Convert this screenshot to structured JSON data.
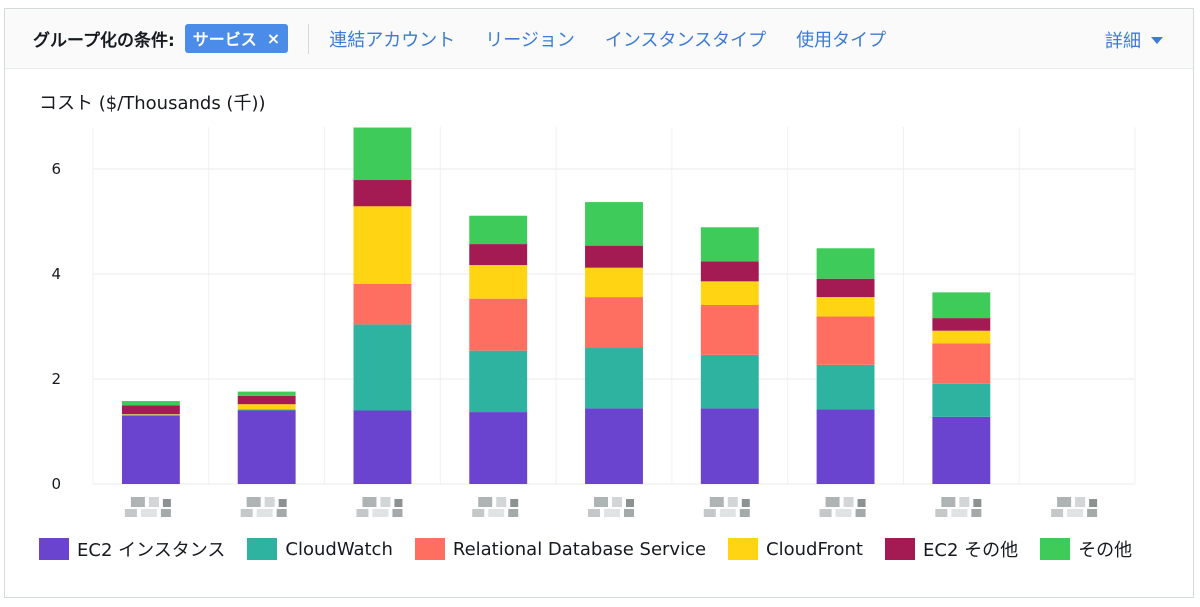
{
  "toolbar": {
    "group_label": "グループ化の条件:",
    "chip_label": "サービス",
    "chip_close": "×",
    "options": [
      "連結アカウント",
      "リージョン",
      "インスタンスタイプ",
      "使用タイプ"
    ],
    "detail_label": "詳細"
  },
  "chart_data": {
    "type": "bar",
    "stacked": true,
    "title": "",
    "ylabel": "コスト ($/Thousands (千))",
    "xlabel": "",
    "ylim": [
      0,
      6.8
    ],
    "yticks": [
      0,
      2,
      4,
      6
    ],
    "grid": true,
    "legend_position": "bottom",
    "categories": [
      "",
      "",
      "",
      "",
      "",
      "",
      "",
      "",
      ""
    ],
    "series": [
      {
        "name": "EC2 インスタンス",
        "color": "#6a44cf",
        "values": [
          1.3,
          1.4,
          1.4,
          1.37,
          1.44,
          1.44,
          1.42,
          1.28,
          0
        ]
      },
      {
        "name": "CloudWatch",
        "color": "#2db3a0",
        "values": [
          0.02,
          0.02,
          1.64,
          1.17,
          1.15,
          1.02,
          0.85,
          0.63,
          0
        ]
      },
      {
        "name": "Relational Database Service",
        "color": "#ff6f61",
        "values": [
          0,
          0,
          0.77,
          0.99,
          0.97,
          0.95,
          0.92,
          0.77,
          0
        ]
      },
      {
        "name": "CloudFront",
        "color": "#ffd513",
        "values": [
          0.01,
          0.1,
          1.48,
          0.64,
          0.56,
          0.45,
          0.37,
          0.24,
          0
        ]
      },
      {
        "name": "EC2 その他",
        "color": "#a31b52",
        "values": [
          0.17,
          0.16,
          0.5,
          0.4,
          0.42,
          0.38,
          0.35,
          0.24,
          0
        ]
      },
      {
        "name": "その他",
        "color": "#3ecb59",
        "values": [
          0.08,
          0.08,
          1.0,
          0.54,
          0.83,
          0.65,
          0.58,
          0.49,
          0
        ]
      }
    ]
  }
}
